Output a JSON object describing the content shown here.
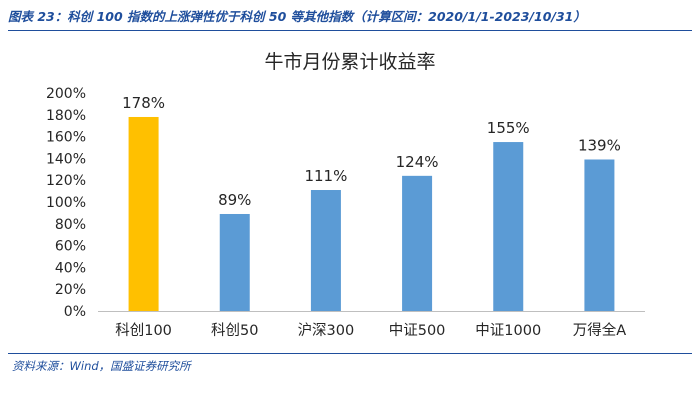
{
  "figure": {
    "caption": "图表 23：科创 100 指数的上涨弹性优于科创 50 等其他指数（计算区间：2020/1/1-2023/10/31）",
    "source": "资料来源：Wind，国盛证券研究所"
  },
  "chart_data": {
    "type": "bar",
    "title": "牛市月份累计收益率",
    "xlabel": "",
    "ylabel": "",
    "categories": [
      "科创100",
      "科创50",
      "沪深300",
      "中证500",
      "中证1000",
      "万得全A"
    ],
    "values": [
      178,
      89,
      111,
      124,
      155,
      139
    ],
    "data_labels": [
      "178%",
      "89%",
      "111%",
      "124%",
      "155%",
      "139%"
    ],
    "value_unit": "%",
    "ylim": [
      0,
      200
    ],
    "y_ticks": [
      0,
      20,
      40,
      60,
      80,
      100,
      120,
      140,
      160,
      180,
      200
    ],
    "y_tick_labels": [
      "0%",
      "20%",
      "40%",
      "60%",
      "80%",
      "100%",
      "120%",
      "140%",
      "160%",
      "180%",
      "200%"
    ],
    "bar_colors": [
      "#ffc000",
      "#5b9bd5",
      "#5b9bd5",
      "#5b9bd5",
      "#5b9bd5",
      "#5b9bd5"
    ],
    "grid": false,
    "legend": false
  }
}
